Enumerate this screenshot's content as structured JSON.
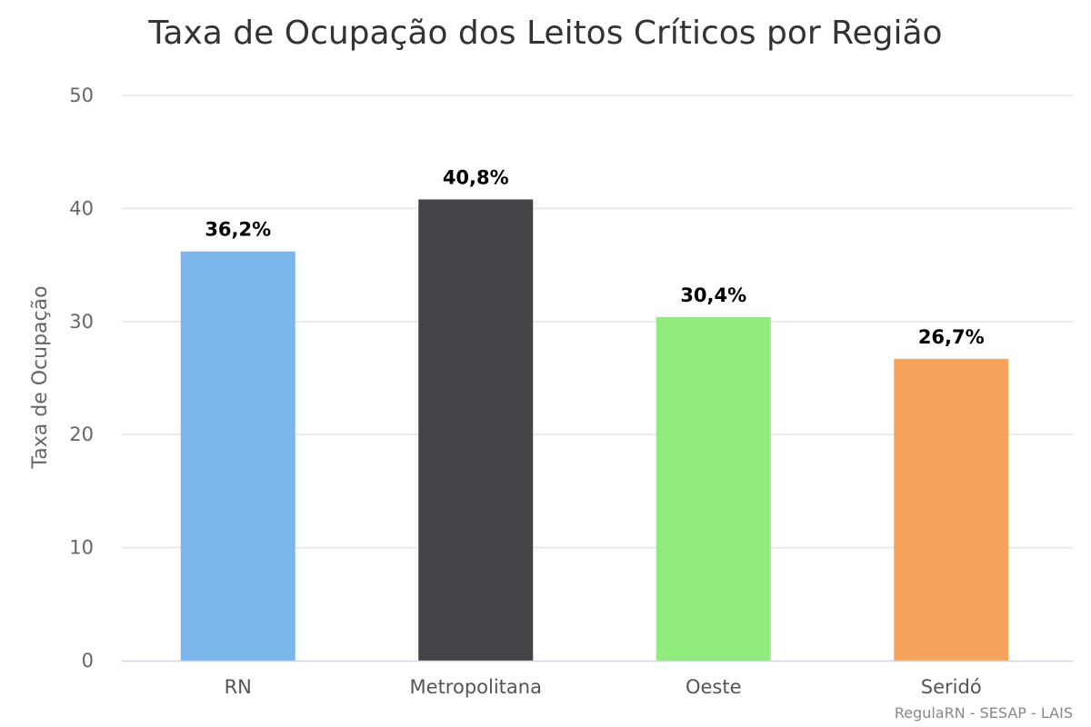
{
  "chart_data": {
    "type": "bar",
    "title": "Taxa de Ocupação dos Leitos Críticos por Região",
    "ylabel": "Taxa de Ocupação",
    "xlabel": "",
    "ylim": [
      0,
      50
    ],
    "yticks": [
      0,
      10,
      20,
      30,
      40,
      50
    ],
    "ytick_labels": [
      "0",
      "10",
      "20",
      "30",
      "40",
      "50"
    ],
    "categories": [
      "RN",
      "Metropolitana",
      "Oeste",
      "Seridó"
    ],
    "values": [
      36.2,
      40.8,
      30.4,
      26.7
    ],
    "data_labels": [
      "36,2%",
      "40,8%",
      "30,4%",
      "26,7%"
    ],
    "colors": [
      "#7cb5ec",
      "#434348",
      "#90ed7d",
      "#f7a35c"
    ],
    "grid": true,
    "legend": "none"
  },
  "credits": "RegulaRN - SESAP - LAIS"
}
